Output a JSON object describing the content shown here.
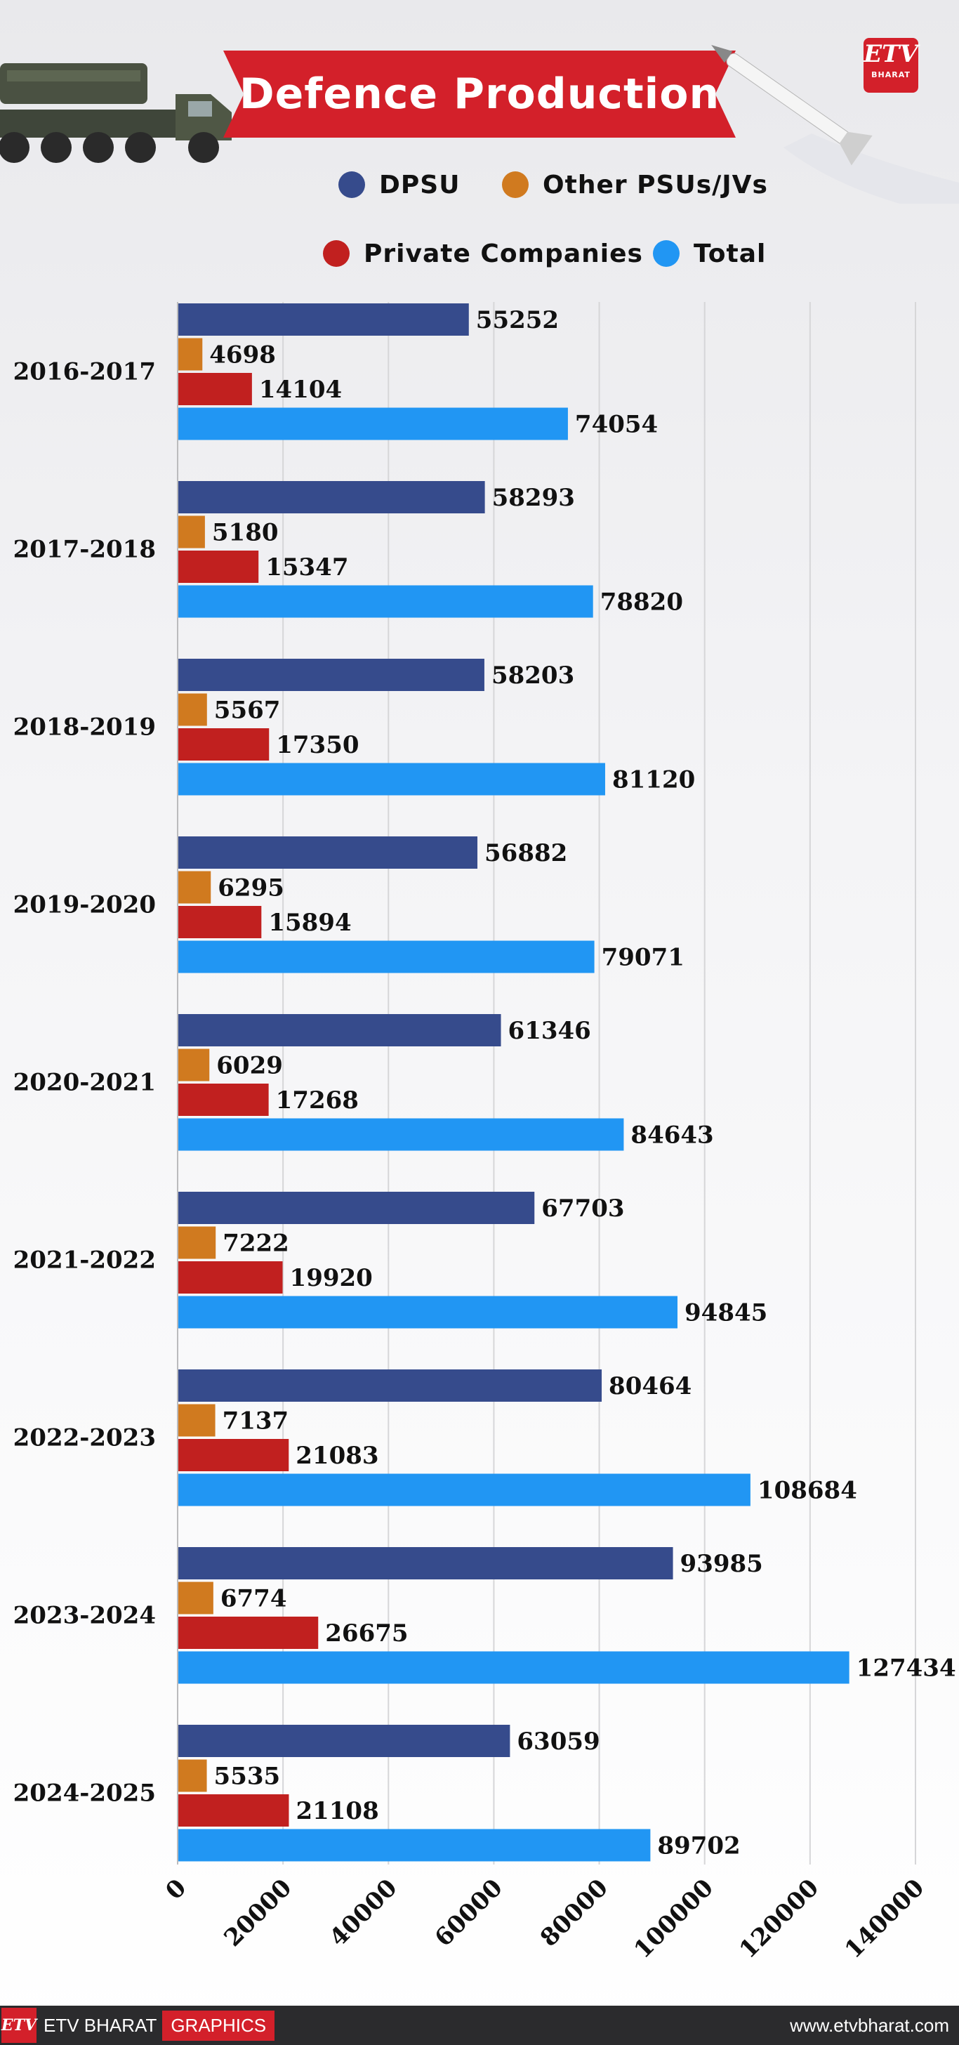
{
  "header": {
    "title": "Defence Production",
    "logo_text": "ETV",
    "logo_sub": "BHARAT"
  },
  "legend": [
    {
      "label": "DPSU",
      "color": "#364b8c"
    },
    {
      "label": "Other PSUs/JVs",
      "color": "#d07a1f"
    },
    {
      "label": "Private Companies",
      "color": "#c1201f"
    },
    {
      "label": "Total",
      "color": "#2196f3"
    }
  ],
  "chart_data": {
    "type": "bar",
    "orientation": "horizontal",
    "title": "Defence Production",
    "categories": [
      "2016-2017",
      "2017-2018",
      "2018-2019",
      "2019-2020",
      "2020-2021",
      "2021-2022",
      "2022-2023",
      "2023-2024",
      "2024-2025"
    ],
    "series": [
      {
        "name": "DPSU",
        "color": "#364b8c",
        "values": [
          55252,
          58293,
          58203,
          56882,
          61346,
          67703,
          80464,
          93985,
          63059
        ]
      },
      {
        "name": "Other PSUs/JVs",
        "color": "#d07a1f",
        "values": [
          4698,
          5180,
          5567,
          6295,
          6029,
          7222,
          7137,
          6774,
          5535
        ]
      },
      {
        "name": "Private Companies",
        "color": "#c1201f",
        "values": [
          14104,
          15347,
          17350,
          15894,
          17268,
          19920,
          21083,
          26675,
          21108
        ]
      },
      {
        "name": "Total",
        "color": "#2196f3",
        "values": [
          74054,
          78820,
          81120,
          79071,
          84643,
          94845,
          108684,
          127434,
          89702
        ]
      }
    ],
    "xlim": [
      0,
      140000
    ],
    "xticks": [
      "0",
      "20000",
      "40000",
      "60000",
      "80000",
      "100000",
      "120000",
      "140000"
    ],
    "grid": true
  },
  "footer": {
    "brand": "ETV BHARAT",
    "section": "GRAPHICS",
    "url": "www.etvbharat.com",
    "logo_text": "ETV"
  }
}
